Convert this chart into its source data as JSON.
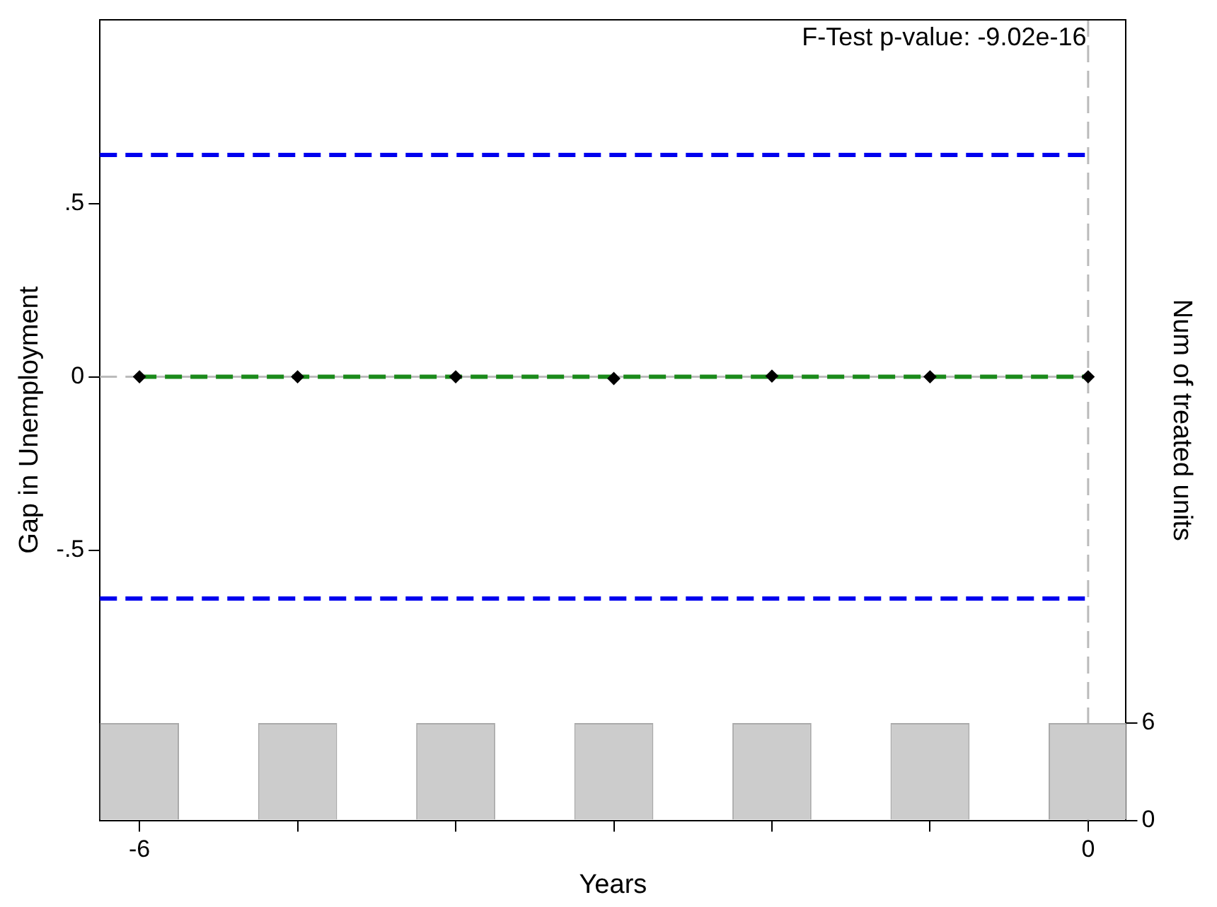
{
  "chart_data": {
    "type": "scatter",
    "xlabel": "Years",
    "ylabel": "Gap in Unemployment",
    "y2label": "Num of treated units",
    "x": [
      -6,
      -5,
      -4,
      -3,
      -2,
      -1,
      0
    ],
    "xlim": [
      -6.25,
      0.24
    ],
    "xticks": [
      -6,
      {
        "value": -5,
        "label": null
      },
      {
        "value": -4,
        "label": null
      },
      {
        "value": -3,
        "label": null
      },
      {
        "value": -2,
        "label": null
      },
      {
        "value": -1,
        "label": null
      },
      0
    ],
    "ylim": [
      -1.28,
      1.03
    ],
    "yticks": [
      {
        "value": -0.5,
        "label": "-.5"
      },
      0,
      {
        "value": 0.5,
        "label": ".5"
      }
    ],
    "y2lim": [
      0,
      49.3
    ],
    "y2ticks": [
      0,
      6
    ],
    "series": [
      {
        "type": "bar",
        "axis": "y2",
        "color": "#cccccc",
        "values": [
          6,
          6,
          6,
          6,
          6,
          6,
          6
        ]
      },
      {
        "type": "line",
        "color": "#1a8a1a",
        "line_style": "dashed",
        "marker": "none",
        "values": [
          0,
          0,
          0,
          0,
          0,
          0,
          0
        ]
      },
      {
        "color": "#000000",
        "marker": "diamond",
        "values": [
          0,
          0,
          0,
          -0.005,
          0.002,
          0,
          0
        ]
      }
    ],
    "ref_lines": [
      {
        "axis": "y",
        "value": 0.64,
        "color": "#0000ee",
        "line_style": "dashed"
      },
      {
        "axis": "y",
        "value": -0.64,
        "color": "#0000ee",
        "line_style": "dashed"
      },
      {
        "axis": "y",
        "value": 0,
        "color": "#bbbbbb",
        "line_style": "dashed"
      },
      {
        "axis": "x",
        "value": 0,
        "color": "#bbbbbb",
        "line_style": "dashed"
      }
    ],
    "annotations": [
      "F-Test p-value: -9.02e-16"
    ],
    "grid": false,
    "legend": false
  }
}
